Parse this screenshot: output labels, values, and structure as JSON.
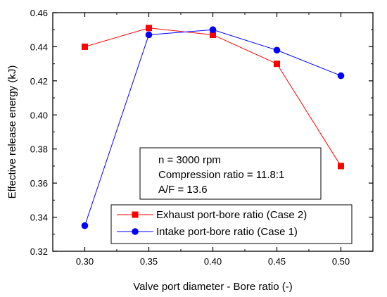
{
  "chart_data": {
    "type": "line",
    "title": "",
    "xlabel": "Valve port diameter - Bore ratio (-)",
    "ylabel": "Effective release energy (kJ)",
    "xlim": [
      0.275,
      0.525
    ],
    "ylim": [
      0.32,
      0.46
    ],
    "x": [
      0.3,
      0.35,
      0.4,
      0.45,
      0.5
    ],
    "x_tick_labels": [
      "0.30",
      "0.35",
      "0.40",
      "0.45",
      "0.50"
    ],
    "y_ticks": [
      0.32,
      0.34,
      0.36,
      0.38,
      0.4,
      0.42,
      0.44,
      0.46
    ],
    "y_tick_labels": [
      "0.32",
      "0.34",
      "0.36",
      "0.38",
      "0.40",
      "0.42",
      "0.44",
      "0.46"
    ],
    "grid": false,
    "legend_position": "bottom-center",
    "series": [
      {
        "name": "Exhaust port-bore ratio (Case 2)",
        "color": "#ff0000",
        "marker": "square",
        "values": [
          0.44,
          0.451,
          0.447,
          0.43,
          0.37
        ]
      },
      {
        "name": "Intake port-bore ratio (Case 1)",
        "color": "#0000ff",
        "marker": "circle",
        "values": [
          0.335,
          0.447,
          0.45,
          0.438,
          0.423
        ]
      }
    ],
    "annotation_lines": [
      "n = 3000 rpm",
      "Compression ratio = 11.8:1",
      "A/F = 13.6"
    ]
  }
}
